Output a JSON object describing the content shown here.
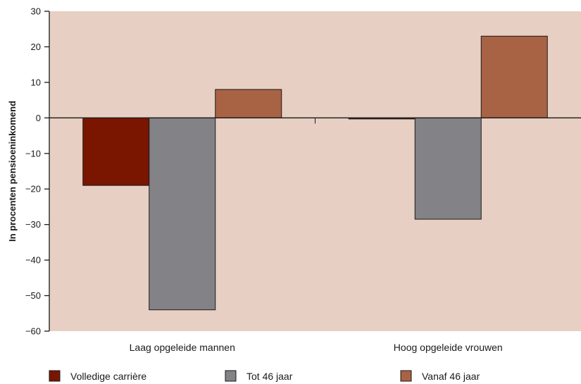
{
  "chart_data": {
    "type": "bar",
    "title": "",
    "xlabel": "",
    "ylabel": "In procenten pensioeninkomend",
    "ylim": [
      -60,
      30
    ],
    "yticks": [
      30,
      20,
      10,
      0,
      -10,
      -20,
      -30,
      -40,
      -50,
      -60
    ],
    "ytick_labels": [
      "30",
      "20",
      "10",
      "0",
      "−10",
      "−20",
      "−30",
      "−40",
      "−50",
      "−60"
    ],
    "categories": [
      "Laag opgeleide mannen",
      "Hoog opgeleide vrouwen"
    ],
    "series": [
      {
        "name": "Volledige carrière",
        "color": "#7a1500",
        "values": [
          -19,
          -0.3
        ]
      },
      {
        "name": "Tot 46 jaar",
        "color": "#828287",
        "values": [
          -54,
          -28.5
        ]
      },
      {
        "name": "Vanaf 46 jaar",
        "color": "#a86244",
        "values": [
          8,
          23
        ]
      }
    ],
    "grid": false,
    "legend_position": "bottom",
    "plot_background": "#e8cfc3"
  }
}
